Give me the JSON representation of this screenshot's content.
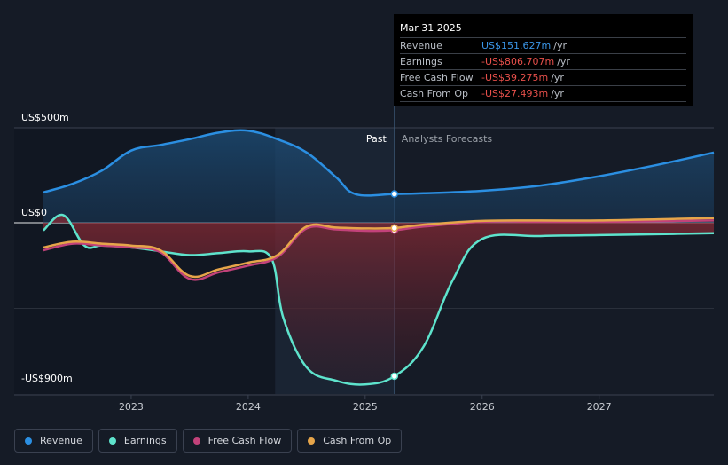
{
  "tooltip": {
    "date": "Mar 31 2025",
    "rows": [
      {
        "label": "Revenue",
        "value": "US$151.627m",
        "unit": "/yr"
      },
      {
        "label": "Earnings",
        "value": "-US$806.707m",
        "unit": "/yr"
      },
      {
        "label": "Free Cash Flow",
        "value": "-US$39.275m",
        "unit": "/yr"
      },
      {
        "label": "Cash From Op",
        "value": "-US$27.493m",
        "unit": "/yr"
      }
    ]
  },
  "colors": {
    "revenue": "#2b8fe2",
    "earnings": "#5ee3cc",
    "fcf": "#c2427a",
    "cfo": "#e6a54a",
    "background": "#151b26"
  },
  "legend": [
    {
      "label": "Revenue",
      "color": "#2b8fe2"
    },
    {
      "label": "Earnings",
      "color": "#5ee3cc"
    },
    {
      "label": "Free Cash Flow",
      "color": "#c2427a"
    },
    {
      "label": "Cash From Op",
      "color": "#e6a54a"
    }
  ],
  "chart_data": {
    "type": "line",
    "title": "",
    "xlabel": "",
    "ylabel": "",
    "y_tick_labels": [
      "US$500m",
      "US$0",
      "-US$900m"
    ],
    "y_ticks": [
      500,
      0,
      -900
    ],
    "x_tick_labels": [
      "2023",
      "2024",
      "2025",
      "2026",
      "2027"
    ],
    "x_ticks": [
      2023,
      2024,
      2025,
      2026,
      2027
    ],
    "xlim": [
      2022.0,
      2027.98
    ],
    "ylim": [
      -900,
      500
    ],
    "past_label": "Past",
    "forecast_label": "Analysts Forecasts",
    "divider_x": 2025.25,
    "highlight_range": [
      2024.23,
      2025.25
    ],
    "grid": true,
    "legend_position": "bottom-left",
    "series": [
      {
        "name": "Revenue",
        "x": [
          2022.25,
          2022.5,
          2022.75,
          2023.0,
          2023.25,
          2023.5,
          2023.75,
          2024.0,
          2024.25,
          2024.5,
          2024.75,
          2024.92,
          2025.25,
          2025.5,
          2026.0,
          2026.5,
          2027.0,
          2027.5,
          2027.98
        ],
        "y": [
          160,
          205,
          275,
          380,
          410,
          440,
          475,
          485,
          440,
          370,
          240,
          150,
          151.6,
          155,
          168,
          196,
          245,
          305,
          370
        ]
      },
      {
        "name": "Earnings",
        "x": [
          2022.25,
          2022.42,
          2022.6,
          2022.75,
          2023.0,
          2023.25,
          2023.5,
          2023.75,
          2024.0,
          2024.2,
          2024.3,
          2024.5,
          2024.75,
          2025.0,
          2025.25,
          2025.5,
          2025.75,
          2026.0,
          2026.5,
          2027.0,
          2027.5,
          2027.98
        ],
        "y": [
          -40,
          40,
          -120,
          -120,
          -130,
          -150,
          -170,
          -160,
          -150,
          -190,
          -500,
          -760,
          -830,
          -850,
          -806.7,
          -650,
          -300,
          -85,
          -70,
          -65,
          -60,
          -55
        ]
      },
      {
        "name": "Free Cash Flow",
        "x": [
          2022.25,
          2022.5,
          2022.75,
          2023.0,
          2023.25,
          2023.5,
          2023.75,
          2024.0,
          2024.25,
          2024.5,
          2024.75,
          2025.0,
          2025.25,
          2025.5,
          2026.0,
          2026.5,
          2027.0,
          2027.5,
          2027.98
        ],
        "y": [
          -145,
          -110,
          -120,
          -130,
          -155,
          -295,
          -260,
          -225,
          -180,
          -30,
          -35,
          -42,
          -39.3,
          -20,
          5,
          5,
          5,
          8,
          12
        ]
      },
      {
        "name": "Cash From Op",
        "x": [
          2022.25,
          2022.5,
          2022.75,
          2023.0,
          2023.25,
          2023.5,
          2023.75,
          2024.0,
          2024.25,
          2024.5,
          2024.75,
          2025.0,
          2025.25,
          2025.5,
          2026.0,
          2026.5,
          2027.0,
          2027.5,
          2027.98
        ],
        "y": [
          -130,
          -100,
          -110,
          -120,
          -145,
          -280,
          -245,
          -210,
          -170,
          -20,
          -25,
          -30,
          -27.5,
          -10,
          10,
          12,
          12,
          18,
          25
        ]
      }
    ]
  }
}
